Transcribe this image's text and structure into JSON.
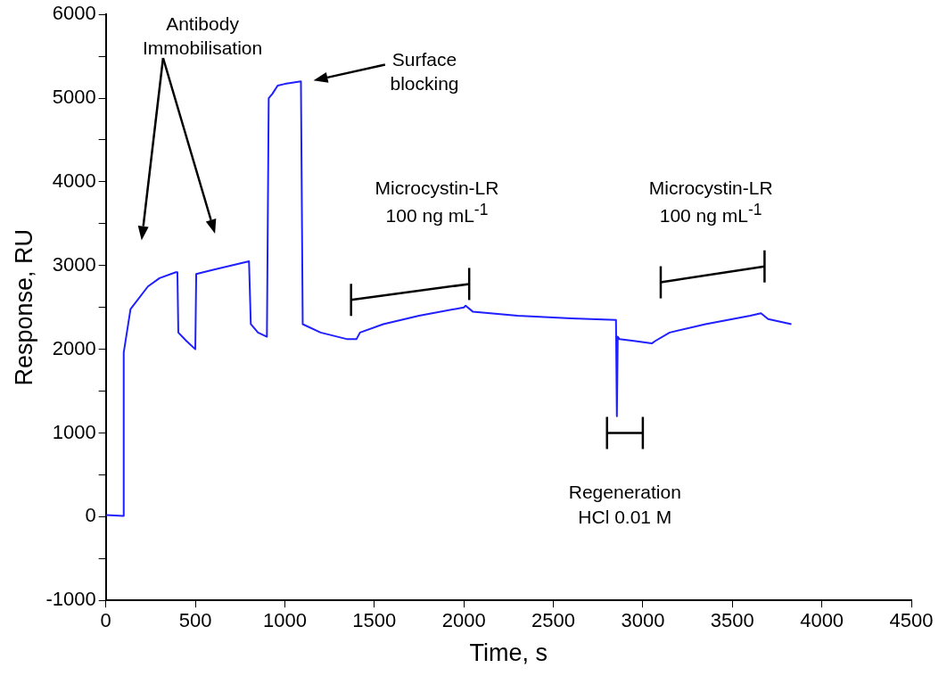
{
  "chart_data": {
    "type": "line",
    "xlabel": "Time, s",
    "ylabel": "Response, RU",
    "x": [
      0,
      97,
      100,
      138,
      235,
      300,
      391,
      400,
      405,
      450,
      500,
      505,
      600,
      700,
      800,
      810,
      850,
      900,
      910,
      930,
      960,
      1000,
      1090,
      1100,
      1200,
      1350,
      1400,
      1420,
      1550,
      1750,
      2000,
      2010,
      2050,
      2300,
      2600,
      2850,
      2855,
      2860,
      2870,
      2950,
      3050,
      3070,
      3150,
      3350,
      3600,
      3660,
      3700,
      3830
    ],
    "series": [
      {
        "color": "#1f1fff",
        "values": [
          20,
          10,
          1960,
          2480,
          2750,
          2850,
          2920,
          2920,
          2200,
          2100,
          2000,
          2900,
          2950,
          3000,
          3050,
          2300,
          2200,
          2150,
          5000,
          5050,
          5150,
          5170,
          5200,
          2300,
          2200,
          2120,
          2120,
          2200,
          2300,
          2400,
          2500,
          2520,
          2450,
          2400,
          2370,
          2350,
          1200,
          2150,
          2120,
          2100,
          2070,
          2100,
          2200,
          2300,
          2400,
          2430,
          2360,
          2300
        ]
      }
    ],
    "xlim": [
      0,
      4500
    ],
    "xticks": [
      0,
      500,
      1000,
      1500,
      2000,
      2500,
      3000,
      3500,
      4000,
      4500
    ],
    "ylim": [
      -1000,
      6000
    ],
    "yticks": [
      -1000,
      {
        "value": -500,
        "label": null
      },
      0,
      {
        "value": 500,
        "label": null
      },
      1000,
      {
        "value": 1500,
        "label": null
      },
      2000,
      {
        "value": 2500,
        "label": null
      },
      3000,
      {
        "value": 3500,
        "label": null
      },
      4000,
      {
        "value": 4500,
        "label": null
      },
      5000,
      {
        "value": 5500,
        "label": null
      },
      6000
    ],
    "grid": false,
    "legend": false,
    "marker": "none",
    "line_style": "solid",
    "annotations": [
      "Antibody\nImmobilisation",
      "Surface\nblocking",
      "Microcystin-LR\n100 ng mL$^{-1}$",
      "Microcystin-LR\n100 ng mL$^{-1}$",
      "Regeneration\nHCl 0.01 M"
    ]
  }
}
